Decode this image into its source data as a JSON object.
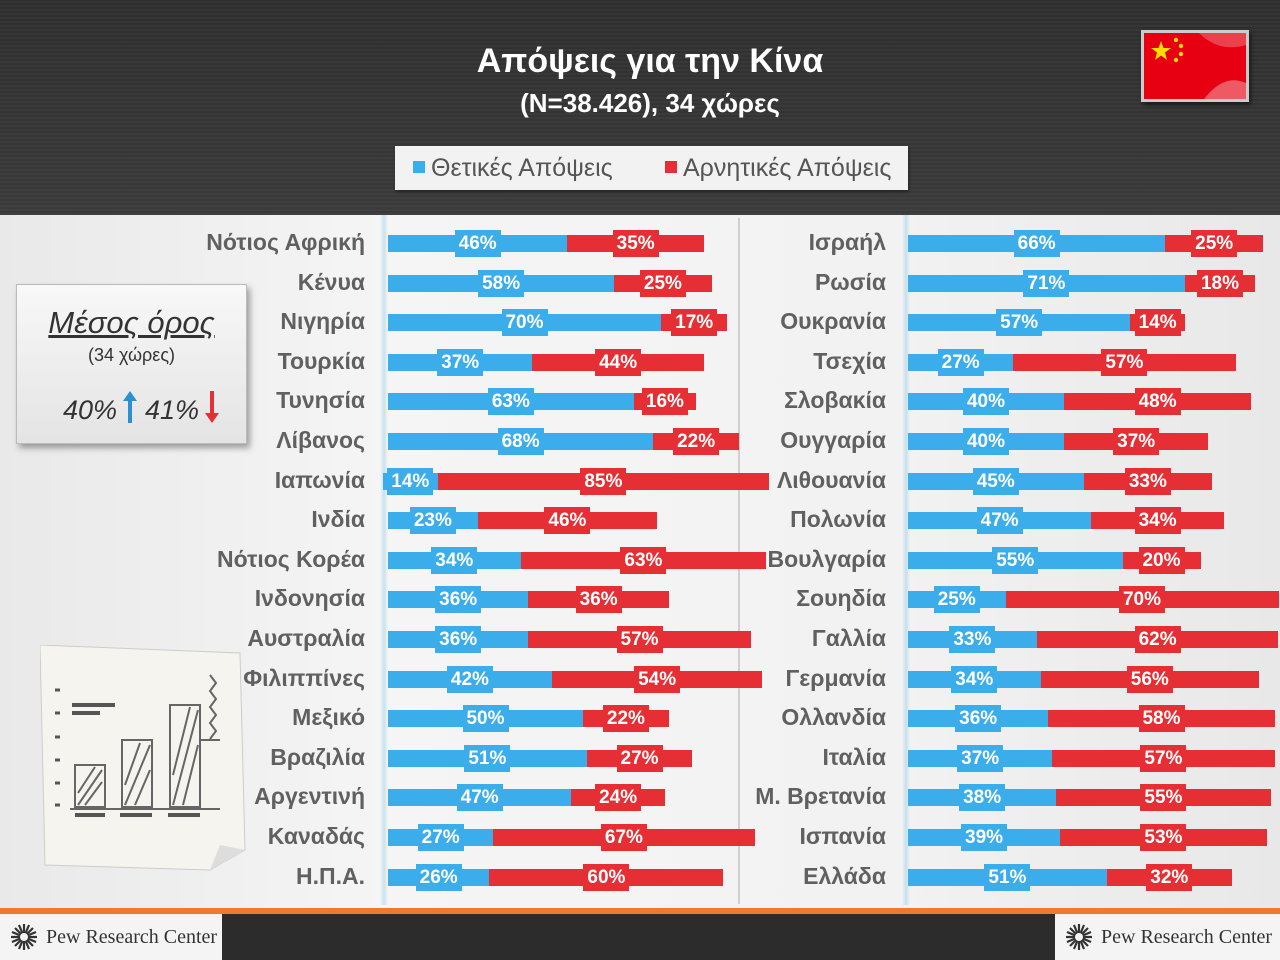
{
  "header": {
    "title": "Απόψεις για την Κίνα",
    "subtitle": "(N=38.426), 34 χώρες",
    "flag_icon": "china-flag-icon"
  },
  "legend": {
    "positive_label": "Θετικές Απόψεις",
    "negative_label": "Αρνητικές Απόψεις"
  },
  "colors": {
    "positive": "#3badea",
    "negative": "#e62f34",
    "footer_accent": "#f07a2a"
  },
  "average": {
    "title": "Μέσος όρος",
    "subtitle": "(34 χώρες)",
    "positive": "40%",
    "negative": "41%",
    "up_icon": "arrow-up-icon",
    "down_icon": "arrow-down-icon"
  },
  "footer": {
    "brand_left": "Pew Research Center",
    "brand_right": "Pew Research Center"
  },
  "chart_data": {
    "type": "bar",
    "orientation": "horizontal",
    "title": "Απόψεις για την Κίνα",
    "subtitle": "(N=38.426), 34 χώρες",
    "series_names": [
      "Θετικές Απόψεις",
      "Αρνητικές Απόψεις"
    ],
    "unit": "%",
    "left_panel": [
      {
        "country": "Νότιος Αφρική",
        "positive": 46,
        "negative": 35
      },
      {
        "country": "Κένυα",
        "positive": 58,
        "negative": 25
      },
      {
        "country": "Νιγηρία",
        "positive": 70,
        "negative": 17
      },
      {
        "country": "Τουρκία",
        "positive": 37,
        "negative": 44
      },
      {
        "country": "Τυνησία",
        "positive": 63,
        "negative": 16
      },
      {
        "country": "Λίβανος",
        "positive": 68,
        "negative": 22
      },
      {
        "country": "Ιαπωνία",
        "positive": 14,
        "negative": 85
      },
      {
        "country": "Ινδία",
        "positive": 23,
        "negative": 46
      },
      {
        "country": "Νότιος Κορέα",
        "positive": 34,
        "negative": 63
      },
      {
        "country": "Ινδονησία",
        "positive": 36,
        "negative": 36
      },
      {
        "country": "Αυστραλία",
        "positive": 36,
        "negative": 57
      },
      {
        "country": "Φιλιππίνες",
        "positive": 42,
        "negative": 54
      },
      {
        "country": "Μεξικό",
        "positive": 50,
        "negative": 22
      },
      {
        "country": "Βραζιλία",
        "positive": 51,
        "negative": 27
      },
      {
        "country": "Αργεντινή",
        "positive": 47,
        "negative": 24
      },
      {
        "country": "Καναδάς",
        "positive": 27,
        "negative": 67
      },
      {
        "country": "Η.Π.Α.",
        "positive": 26,
        "negative": 60
      }
    ],
    "right_panel": [
      {
        "country": "Ισραήλ",
        "positive": 66,
        "negative": 25
      },
      {
        "country": "Ρωσία",
        "positive": 71,
        "negative": 18
      },
      {
        "country": "Ουκρανία",
        "positive": 57,
        "negative": 14
      },
      {
        "country": "Τσεχία",
        "positive": 27,
        "negative": 57
      },
      {
        "country": "Σλοβακία",
        "positive": 40,
        "negative": 48
      },
      {
        "country": "Ουγγαρία",
        "positive": 40,
        "negative": 37
      },
      {
        "country": "Λιθουανία",
        "positive": 45,
        "negative": 33
      },
      {
        "country": "Πολωνία",
        "positive": 47,
        "negative": 34
      },
      {
        "country": "Βουλγαρία",
        "positive": 55,
        "negative": 20
      },
      {
        "country": "Σουηδία",
        "positive": 25,
        "negative": 70
      },
      {
        "country": "Γαλλία",
        "positive": 33,
        "negative": 62
      },
      {
        "country": "Γερμανία",
        "positive": 34,
        "negative": 56
      },
      {
        "country": "Ολλανδία",
        "positive": 36,
        "negative": 58
      },
      {
        "country": "Ιταλία",
        "positive": 37,
        "negative": 57
      },
      {
        "country": "Μ. Βρετανία",
        "positive": 38,
        "negative": 55
      },
      {
        "country": "Ισπανία",
        "positive": 39,
        "negative": 53
      },
      {
        "country": "Ελλάδα",
        "positive": 51,
        "negative": 32
      }
    ]
  }
}
